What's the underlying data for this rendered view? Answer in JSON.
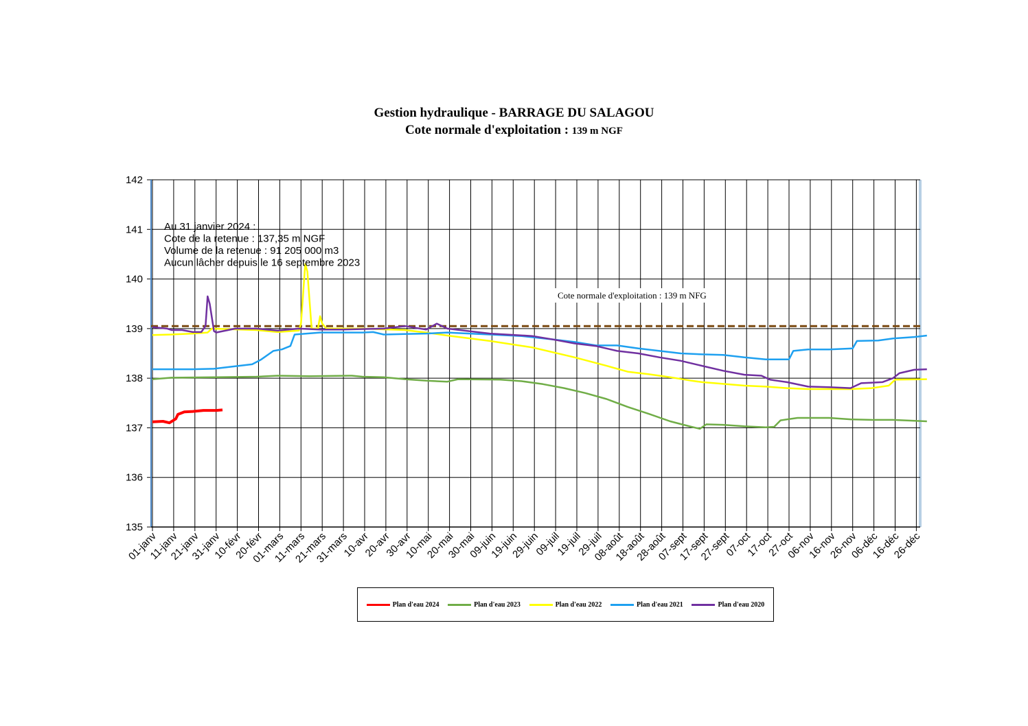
{
  "title": {
    "line1": "Gestion hydraulique - BARRAGE DU SALAGOU",
    "line2_main": "Cote normale d'exploitation :",
    "line2_small": "139 m NGF"
  },
  "info_box": [
    "Au 31 janvier 2024 :",
    "Cote de la retenue : 137,35 m NGF",
    "Volume de la retenue : 91 205 000 m3",
    "Aucun lâcher depuis le 16 septembre 2023"
  ],
  "reference_label": "Cote normale d'exploitation : 139 m NFG",
  "chart_data": {
    "type": "line",
    "ylim": [
      135,
      142
    ],
    "y_ticks": [
      135,
      136,
      137,
      138,
      139,
      140,
      141,
      142
    ],
    "xlim_day": [
      1,
      366
    ],
    "x_tick_labels": [
      "01-janv",
      "11-janv",
      "21-janv",
      "31-janv",
      "10-févr",
      "20-févr",
      "01-mars",
      "11-mars",
      "21-mars",
      "31-mars",
      "10-avr",
      "20-avr",
      "30-avr",
      "10-mai",
      "20-mai",
      "30-mai",
      "09-juin",
      "19-juin",
      "29-juin",
      "09-juil",
      "19-juil",
      "29-juil",
      "08-août",
      "18-août",
      "28-août",
      "07-sept",
      "17-sept",
      "27-sept",
      "07-oct",
      "17-oct",
      "27-oct",
      "06-nov",
      "16-nov",
      "26-nov",
      "06-déc",
      "16-déc",
      "26-déc"
    ],
    "grid": true,
    "reference_line": {
      "value": 139.05,
      "color": "#7b4a12",
      "style": "dashed"
    },
    "series": [
      {
        "name": "Plan d'eau 2024",
        "color": "#ff0000",
        "points": [
          [
            1,
            137.12
          ],
          [
            6,
            137.13
          ],
          [
            9,
            137.1
          ],
          [
            12,
            137.18
          ],
          [
            13,
            137.27
          ],
          [
            16,
            137.32
          ],
          [
            20,
            137.33
          ],
          [
            25,
            137.35
          ],
          [
            31,
            137.35
          ],
          [
            34,
            137.36
          ]
        ]
      },
      {
        "name": "Plan d'eau 2023",
        "color": "#70ad47",
        "points": [
          [
            1,
            137.98
          ],
          [
            10,
            138.01
          ],
          [
            30,
            138.02
          ],
          [
            50,
            138.03
          ],
          [
            60,
            138.05
          ],
          [
            75,
            138.04
          ],
          [
            95,
            138.05
          ],
          [
            100,
            138.03
          ],
          [
            110,
            138.02
          ],
          [
            120,
            137.98
          ],
          [
            130,
            137.95
          ],
          [
            140,
            137.93
          ],
          [
            145,
            137.98
          ],
          [
            165,
            137.97
          ],
          [
            175,
            137.94
          ],
          [
            185,
            137.88
          ],
          [
            195,
            137.8
          ],
          [
            205,
            137.7
          ],
          [
            215,
            137.58
          ],
          [
            225,
            137.42
          ],
          [
            235,
            137.28
          ],
          [
            245,
            137.13
          ],
          [
            255,
            137.02
          ],
          [
            259,
            136.98
          ],
          [
            262,
            137.07
          ],
          [
            270,
            137.06
          ],
          [
            280,
            137.03
          ],
          [
            290,
            137.01
          ],
          [
            294,
            137.02
          ],
          [
            297,
            137.15
          ],
          [
            305,
            137.2
          ],
          [
            320,
            137.2
          ],
          [
            330,
            137.17
          ],
          [
            340,
            137.16
          ],
          [
            350,
            137.16
          ],
          [
            366,
            137.13
          ]
        ]
      },
      {
        "name": "Plan d'eau 2022",
        "color": "#ffff00",
        "points": [
          [
            1,
            138.87
          ],
          [
            10,
            138.88
          ],
          [
            20,
            138.9
          ],
          [
            27,
            138.92
          ],
          [
            29,
            139.0
          ],
          [
            50,
            138.97
          ],
          [
            60,
            138.93
          ],
          [
            70,
            138.96
          ],
          [
            71,
            139.1
          ],
          [
            73,
            140.3
          ],
          [
            74,
            140.15
          ],
          [
            76,
            139.0
          ],
          [
            79,
            139.0
          ],
          [
            80,
            139.25
          ],
          [
            81,
            139.1
          ],
          [
            83,
            139.0
          ],
          [
            100,
            139.0
          ],
          [
            120,
            138.97
          ],
          [
            130,
            138.92
          ],
          [
            140,
            138.86
          ],
          [
            160,
            138.75
          ],
          [
            180,
            138.62
          ],
          [
            200,
            138.42
          ],
          [
            215,
            138.25
          ],
          [
            225,
            138.13
          ],
          [
            235,
            138.08
          ],
          [
            245,
            138.02
          ],
          [
            255,
            137.95
          ],
          [
            260,
            137.92
          ],
          [
            266,
            137.9
          ],
          [
            280,
            137.85
          ],
          [
            290,
            137.83
          ],
          [
            300,
            137.8
          ],
          [
            310,
            137.78
          ],
          [
            320,
            137.78
          ],
          [
            330,
            137.78
          ],
          [
            340,
            137.8
          ],
          [
            348,
            137.85
          ],
          [
            351,
            137.97
          ],
          [
            366,
            137.98
          ]
        ]
      },
      {
        "name": "Plan d'eau 2021",
        "color": "#1ea0f0",
        "points": [
          [
            1,
            138.18
          ],
          [
            20,
            138.18
          ],
          [
            30,
            138.19
          ],
          [
            40,
            138.24
          ],
          [
            48,
            138.28
          ],
          [
            52,
            138.37
          ],
          [
            58,
            138.55
          ],
          [
            62,
            138.58
          ],
          [
            66,
            138.65
          ],
          [
            68,
            138.88
          ],
          [
            80,
            138.92
          ],
          [
            100,
            138.92
          ],
          [
            105,
            138.93
          ],
          [
            110,
            138.88
          ],
          [
            120,
            138.89
          ],
          [
            130,
            138.9
          ],
          [
            140,
            138.92
          ],
          [
            160,
            138.88
          ],
          [
            175,
            138.85
          ],
          [
            190,
            138.78
          ],
          [
            200,
            138.73
          ],
          [
            210,
            138.66
          ],
          [
            220,
            138.66
          ],
          [
            230,
            138.6
          ],
          [
            240,
            138.55
          ],
          [
            250,
            138.5
          ],
          [
            260,
            138.48
          ],
          [
            270,
            138.47
          ],
          [
            280,
            138.42
          ],
          [
            290,
            138.38
          ],
          [
            301,
            138.38
          ],
          [
            303,
            138.55
          ],
          [
            310,
            138.58
          ],
          [
            320,
            138.58
          ],
          [
            331,
            138.6
          ],
          [
            333,
            138.75
          ],
          [
            343,
            138.76
          ],
          [
            350,
            138.8
          ],
          [
            360,
            138.83
          ],
          [
            366,
            138.86
          ]
        ]
      },
      {
        "name": "Plan d'eau 2020",
        "color": "#7030a0",
        "points": [
          [
            1,
            139.03
          ],
          [
            8,
            139.0
          ],
          [
            10,
            138.97
          ],
          [
            15,
            138.97
          ],
          [
            20,
            138.93
          ],
          [
            24,
            138.93
          ],
          [
            26,
            139.05
          ],
          [
            27,
            139.65
          ],
          [
            28,
            139.5
          ],
          [
            30,
            138.95
          ],
          [
            31,
            138.92
          ],
          [
            40,
            139.0
          ],
          [
            50,
            139.0
          ],
          [
            60,
            138.96
          ],
          [
            70,
            139.0
          ],
          [
            80,
            138.98
          ],
          [
            90,
            138.98
          ],
          [
            110,
            139.0
          ],
          [
            120,
            139.05
          ],
          [
            130,
            138.98
          ],
          [
            135,
            139.1
          ],
          [
            140,
            139.0
          ],
          [
            160,
            138.9
          ],
          [
            180,
            138.85
          ],
          [
            190,
            138.78
          ],
          [
            200,
            138.7
          ],
          [
            210,
            138.65
          ],
          [
            220,
            138.55
          ],
          [
            230,
            138.5
          ],
          [
            240,
            138.42
          ],
          [
            250,
            138.35
          ],
          [
            260,
            138.25
          ],
          [
            270,
            138.15
          ],
          [
            280,
            138.07
          ],
          [
            288,
            138.05
          ],
          [
            292,
            137.97
          ],
          [
            300,
            137.92
          ],
          [
            310,
            137.83
          ],
          [
            320,
            137.82
          ],
          [
            330,
            137.8
          ],
          [
            335,
            137.9
          ],
          [
            345,
            137.92
          ],
          [
            350,
            138.0
          ],
          [
            353,
            138.1
          ],
          [
            360,
            138.17
          ],
          [
            366,
            138.18
          ]
        ]
      }
    ]
  },
  "legend": [
    {
      "label": "Plan d'eau 2024",
      "color": "#ff0000"
    },
    {
      "label": "Plan d'eau 2023",
      "color": "#70ad47"
    },
    {
      "label": "Plan d'eau 2022",
      "color": "#ffff00"
    },
    {
      "label": "Plan d'eau 2021",
      "color": "#1ea0f0"
    },
    {
      "label": "Plan d'eau 2020",
      "color": "#7030a0"
    }
  ]
}
